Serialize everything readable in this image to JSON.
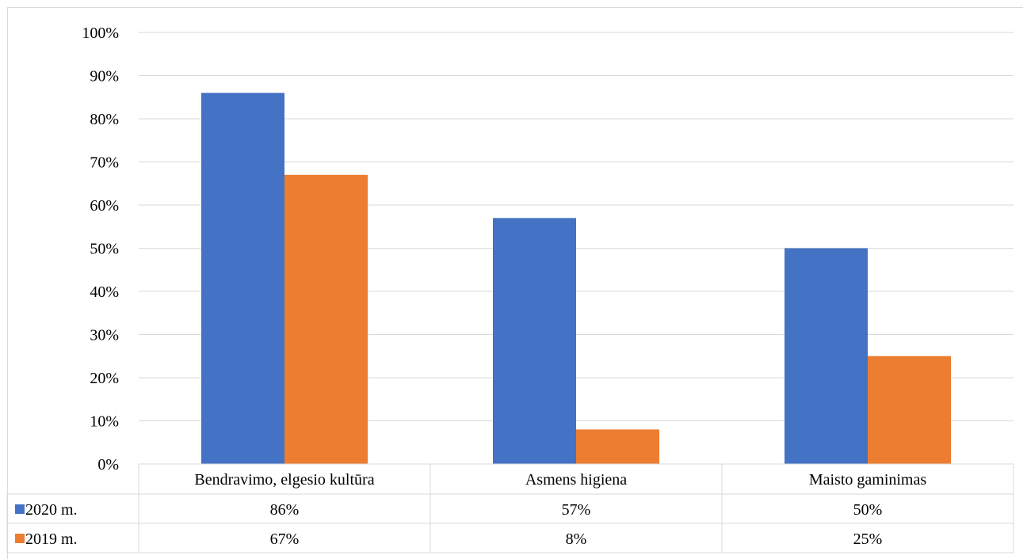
{
  "chart_data": {
    "type": "bar",
    "categories": [
      "Bendravimo, elgesio kultūra",
      "Asmens higiena",
      "Maisto gaminimas"
    ],
    "series": [
      {
        "name": "2020 m.",
        "values": [
          86,
          57,
          50
        ],
        "labels": [
          "86%",
          "57%",
          "50%"
        ],
        "color": "#4472c4"
      },
      {
        "name": "2019 m.",
        "values": [
          67,
          8,
          25
        ],
        "labels": [
          "67%",
          "8%",
          "25%"
        ],
        "color": "#ed7d31"
      }
    ],
    "ylim": [
      0,
      100
    ],
    "yticks": [
      "0%",
      "10%",
      "20%",
      "30%",
      "40%",
      "50%",
      "60%",
      "70%",
      "80%",
      "90%",
      "100%"
    ],
    "grid": true,
    "legend": "data table",
    "gridColor": "#d9d9d9"
  }
}
